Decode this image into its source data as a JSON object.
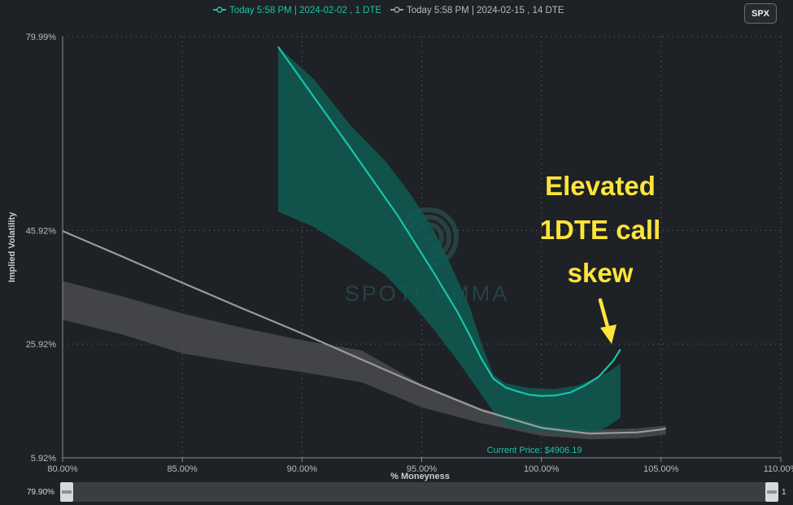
{
  "spx_button": "SPX",
  "slider": {
    "min_label": "79.90%",
    "max_label": "1"
  },
  "colors": {
    "teal": "#17c3ad",
    "teal_band": "#0f5a52",
    "gray": "#9a9a9a",
    "gray_band": "#47484b",
    "background": "#1e2125",
    "annotation": "#ffe43a"
  },
  "chart_data": {
    "type": "line",
    "xlabel": "% Moneyness",
    "ylabel": "Implied Volatility",
    "xlim": [
      80,
      110
    ],
    "ylim": [
      5.92,
      79.99
    ],
    "x_ticks": [
      "80.00%",
      "85.00%",
      "90.00%",
      "95.00%",
      "100.00%",
      "105.00%",
      "110.00%"
    ],
    "y_ticks": [
      "79.99%",
      "45.92%",
      "25.92%",
      "5.92%"
    ],
    "grid": true,
    "legend_position": "top-center",
    "series": [
      {
        "name": "Today 5:58 PM | 2024-02-02 , 1 DTE",
        "color": "#17c3ad",
        "points": [
          [
            89.0,
            78.2
          ],
          [
            92.0,
            60.5
          ],
          [
            94.0,
            48.5
          ],
          [
            95.5,
            38.5
          ],
          [
            96.5,
            31.5
          ],
          [
            97.0,
            27.5
          ],
          [
            97.5,
            23.3
          ],
          [
            98.0,
            19.8
          ],
          [
            98.5,
            18.3
          ],
          [
            99.0,
            17.6
          ],
          [
            99.5,
            17.0
          ],
          [
            100.0,
            16.8
          ],
          [
            100.6,
            16.9
          ],
          [
            101.2,
            17.4
          ],
          [
            101.8,
            18.6
          ],
          [
            102.4,
            20.2
          ],
          [
            103.0,
            23.0
          ],
          [
            103.3,
            25.0
          ]
        ],
        "band_upper": [
          [
            89.0,
            78.2
          ],
          [
            90.5,
            72.5
          ],
          [
            92.0,
            64.5
          ],
          [
            93.5,
            58.0
          ],
          [
            94.5,
            52.5
          ],
          [
            95.5,
            46.0
          ],
          [
            96.2,
            40.0
          ],
          [
            97.0,
            32.5
          ],
          [
            97.5,
            26.0
          ],
          [
            98.0,
            20.5
          ],
          [
            98.5,
            19.0
          ],
          [
            99.5,
            18.2
          ],
          [
            100.5,
            18.0
          ],
          [
            101.5,
            18.6
          ],
          [
            102.2,
            19.8
          ],
          [
            102.8,
            21.0
          ],
          [
            103.3,
            22.5
          ]
        ],
        "band_lower": [
          [
            89.0,
            49.2
          ],
          [
            90.5,
            46.5
          ],
          [
            92.0,
            42.5
          ],
          [
            93.5,
            38.0
          ],
          [
            94.5,
            33.5
          ],
          [
            95.5,
            28.5
          ],
          [
            96.5,
            23.0
          ],
          [
            97.0,
            20.0
          ],
          [
            97.5,
            17.0
          ],
          [
            98.0,
            14.0
          ],
          [
            98.5,
            11.6
          ],
          [
            99.5,
            10.8
          ],
          [
            100.5,
            10.4
          ],
          [
            101.5,
            10.1
          ],
          [
            102.2,
            10.3
          ],
          [
            102.8,
            11.5
          ],
          [
            103.3,
            13.0
          ]
        ]
      },
      {
        "name": "Today 5:58 PM | 2024-02-15 , 14 DTE",
        "color": "#9a9a9a",
        "points": [
          [
            80.0,
            45.8
          ],
          [
            82.5,
            41.3
          ],
          [
            85.0,
            36.7
          ],
          [
            87.5,
            32.2
          ],
          [
            90.0,
            27.8
          ],
          [
            92.5,
            23.2
          ],
          [
            95.0,
            18.6
          ],
          [
            97.5,
            14.3
          ],
          [
            100.0,
            11.2
          ],
          [
            102.0,
            10.2
          ],
          [
            104.0,
            10.4
          ],
          [
            105.0,
            10.9
          ],
          [
            105.2,
            11.1
          ]
        ],
        "band_upper": [
          [
            80.0,
            37.0
          ],
          [
            82.5,
            34.3
          ],
          [
            85.0,
            31.3
          ],
          [
            87.5,
            28.8
          ],
          [
            90.0,
            26.6
          ],
          [
            92.5,
            24.8
          ],
          [
            95.0,
            18.8
          ],
          [
            97.5,
            14.6
          ],
          [
            100.0,
            11.8
          ],
          [
            102.0,
            10.9
          ],
          [
            104.0,
            11.1
          ],
          [
            105.2,
            11.6
          ]
        ],
        "band_lower": [
          [
            80.0,
            30.2
          ],
          [
            82.5,
            27.6
          ],
          [
            85.0,
            24.3
          ],
          [
            87.5,
            22.5
          ],
          [
            90.0,
            21.0
          ],
          [
            92.5,
            19.2
          ],
          [
            95.0,
            14.8
          ],
          [
            97.5,
            12.0
          ],
          [
            100.0,
            9.8
          ],
          [
            102.0,
            9.2
          ],
          [
            104.0,
            9.4
          ],
          [
            105.2,
            10.0
          ]
        ]
      }
    ],
    "current_price": {
      "label": "Current Price: $4906.19",
      "x": 100.0
    },
    "annotation": {
      "lines": [
        "Elevated",
        "1DTE call",
        "skew"
      ]
    },
    "watermark": "SPOTGAMMA"
  }
}
